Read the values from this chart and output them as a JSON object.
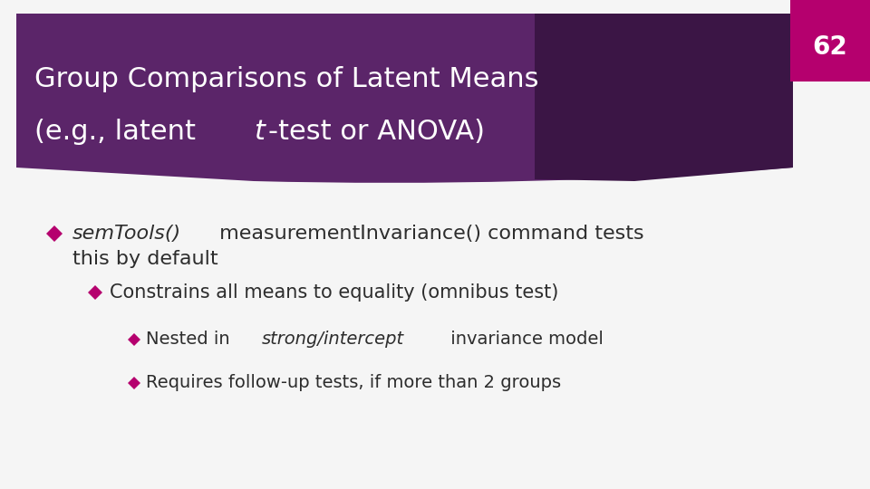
{
  "title_line1": "Group Comparisons of Latent Means",
  "title_line2_pre": "(e.g., latent ",
  "title_line2_italic": "t",
  "title_line2_post": "-test or ANOVA)",
  "slide_number": "62",
  "background_color": "#f5f5f5",
  "header_color_main": "#5b2569",
  "header_color_dark": "#3b1545",
  "slide_number_bg": "#b5006e",
  "title_text_color": "#ffffff",
  "slide_number_color": "#ffffff",
  "body_text_color": "#2d2d2d",
  "bullet_color": "#b5006e",
  "title_fontsize": 22,
  "body_fontsize_l1": 16,
  "body_fontsize_l2": 15,
  "body_fontsize_l3": 14
}
